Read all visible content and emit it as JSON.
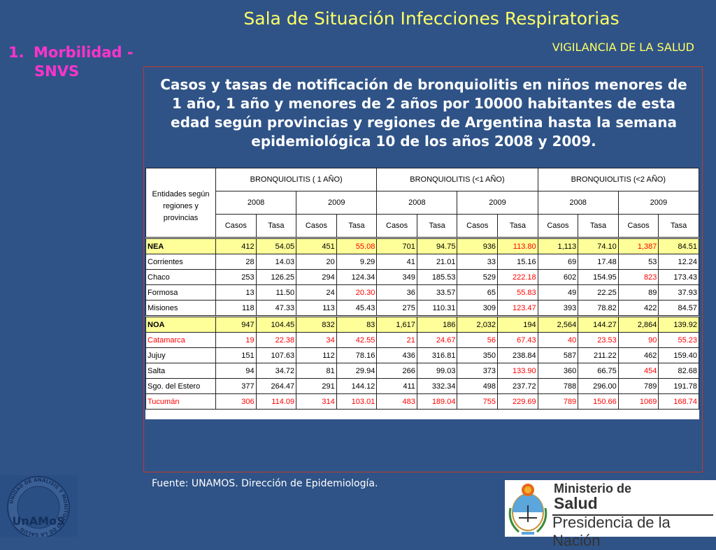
{
  "header": {
    "title": "Sala de Situación Infecciones Respiratorias",
    "subtitle": "VIGILANCIA DE LA SALUD",
    "section_number": "1.",
    "section_line1": "Morbilidad -",
    "section_line2": "SNVS"
  },
  "caption": "Casos y tasas de notificación  de bronquiolitis en niños menores de 1 año, 1 año y menores de 2 años por 10000 habitantes de esta edad según provincias y regiones de Argentina hasta la semana epidemiológica 10 de los años 2008 y 2009.",
  "table": {
    "corner_header": "Entidades según regiones y provincias",
    "groups": [
      "BRONQUIOLITIS ( 1 AÑO)",
      "BRONQUIOLITIS (<1 AÑO)",
      "BRONQUIOLITIS (<2 AÑO)"
    ],
    "years": [
      "2008",
      "2009",
      "2008",
      "2009",
      "2008",
      "2009"
    ],
    "metrics": [
      "Casos",
      "Tasa",
      "Casos",
      "Tasa",
      "Casos",
      "Tasa",
      "Casos",
      "Tasa",
      "Casos",
      "Tasa",
      "Casos",
      "Tasa"
    ],
    "rows": [
      {
        "name": "NEA",
        "region": true,
        "values": [
          "412",
          "54.05",
          "451",
          "55.08",
          "701",
          "94.75",
          "936",
          "113.80",
          "1,113",
          "74.10",
          "1,387",
          "84.51"
        ],
        "red": [
          3,
          7,
          10
        ]
      },
      {
        "name": "Corrientes",
        "values": [
          "28",
          "14.03",
          "20",
          "9.29",
          "41",
          "21.01",
          "33",
          "15.16",
          "69",
          "17.48",
          "53",
          "12.24"
        ],
        "red": []
      },
      {
        "name": "Chaco",
        "values": [
          "253",
          "126.25",
          "294",
          "124.34",
          "349",
          "185.53",
          "529",
          "222.18",
          "602",
          "154.95",
          "823",
          "173.43"
        ],
        "red": [
          7,
          10
        ]
      },
      {
        "name": "Formosa",
        "values": [
          "13",
          "11.50",
          "24",
          "20.30",
          "36",
          "33.57",
          "65",
          "55.83",
          "49",
          "22.25",
          "89",
          "37.93"
        ],
        "red": [
          3,
          7
        ]
      },
      {
        "name": "Misiones",
        "values": [
          "118",
          "47.33",
          "113",
          "45.43",
          "275",
          "110.31",
          "309",
          "123.47",
          "393",
          "78.82",
          "422",
          "84.57"
        ],
        "red": [
          7
        ]
      },
      {
        "name": "NOA",
        "region": true,
        "values": [
          "947",
          "104.45",
          "832",
          "83",
          "1,617",
          "186",
          "2,032",
          "194",
          "2,564",
          "144.27",
          "2,864",
          "139.92"
        ],
        "red": []
      },
      {
        "name": "Catamarca",
        "all_red": true,
        "values": [
          "19",
          "22.38",
          "34",
          "42.55",
          "21",
          "24.67",
          "56",
          "67.43",
          "40",
          "23.53",
          "90",
          "55.23"
        ],
        "red": []
      },
      {
        "name": "Jujuy",
        "values": [
          "151",
          "107.63",
          "112",
          "78.16",
          "436",
          "316.81",
          "350",
          "238.84",
          "587",
          "211.22",
          "462",
          "159.40"
        ],
        "red": []
      },
      {
        "name": "Salta",
        "values": [
          "94",
          "34.72",
          "81",
          "29.94",
          "266",
          "99.03",
          "373",
          "133.90",
          "360",
          "66.75",
          "454",
          "82.68"
        ],
        "red": [
          7,
          10
        ]
      },
      {
        "name": "Sgo. del Estero",
        "values": [
          "377",
          "264.47",
          "291",
          "144.12",
          "411",
          "332.34",
          "498",
          "237.72",
          "788",
          "296.00",
          "789",
          "191.78"
        ],
        "red": []
      },
      {
        "name": "Tucumán",
        "all_red": true,
        "values": [
          "306",
          "114.09",
          "314",
          "103.01",
          "483",
          "189.04",
          "755",
          "229.69",
          "789",
          "150.66",
          "1069",
          "168.74"
        ],
        "red": []
      }
    ]
  },
  "source": "Fuente: UNAMOS. Dirección de Epidemiología.",
  "logos": {
    "unamos_text": "UnAMoS",
    "unamos_ring": "UNIDAD DE ANALISIS Y MONITOREO DE LA SALUD",
    "ministerio_line1": "Ministerio de",
    "ministerio_line2": "Salud",
    "ministerio_line3": "Presidencia de la Nación"
  }
}
